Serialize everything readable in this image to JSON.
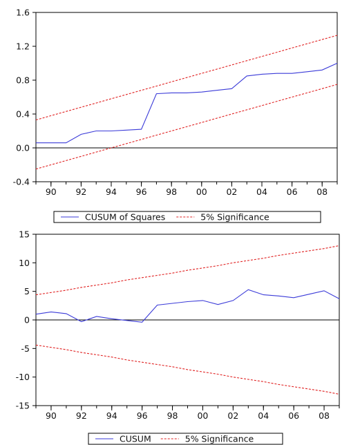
{
  "chart_data": [
    {
      "type": "line",
      "x": [
        1989,
        1990,
        1991,
        1992,
        1993,
        1994,
        1995,
        1996,
        1997,
        1998,
        1999,
        2000,
        2001,
        2002,
        2003,
        2004,
        2005,
        2006,
        2007,
        2008,
        2009
      ],
      "x_tick_labels": [
        "90",
        "92",
        "94",
        "96",
        "98",
        "00",
        "02",
        "04",
        "06",
        "08"
      ],
      "x_tick_values": [
        1990,
        1992,
        1994,
        1996,
        1998,
        2000,
        2002,
        2004,
        2006,
        2008
      ],
      "xlim": [
        1989,
        2009
      ],
      "ylim": [
        -0.4,
        1.6
      ],
      "y_tick_labels": [
        "1.6",
        "1.2",
        "0.8",
        "0.4",
        "0.0",
        "-0.4"
      ],
      "y_tick_values": [
        1.6,
        1.2,
        0.8,
        0.4,
        0.0,
        -0.4
      ],
      "series": [
        {
          "name": "CUSUM of Squares",
          "color": "#3a3ad8",
          "style": "solid",
          "values": [
            0.06,
            0.06,
            0.06,
            0.16,
            0.2,
            0.2,
            0.21,
            0.22,
            0.64,
            0.65,
            0.65,
            0.66,
            0.68,
            0.7,
            0.85,
            0.87,
            0.88,
            0.88,
            0.9,
            0.92,
            1.0
          ]
        },
        {
          "name": "5% Significance",
          "color": "#e02020",
          "style": "dashed",
          "values": [
            0.33,
            0.38,
            0.43,
            0.48,
            0.53,
            0.58,
            0.63,
            0.68,
            0.73,
            0.78,
            0.83,
            0.88,
            0.93,
            0.98,
            1.03,
            1.08,
            1.13,
            1.18,
            1.23,
            1.28,
            1.33
          ]
        },
        {
          "name": "5% Significance lower",
          "color": "#e02020",
          "style": "dashed",
          "values": [
            -0.25,
            -0.2,
            -0.15,
            -0.1,
            -0.05,
            0.0,
            0.05,
            0.1,
            0.15,
            0.2,
            0.25,
            0.3,
            0.35,
            0.4,
            0.45,
            0.5,
            0.55,
            0.6,
            0.65,
            0.7,
            0.75
          ]
        }
      ],
      "zero_line": 0.0,
      "legend": [
        {
          "label": "CUSUM of Squares",
          "color": "#3a3ad8",
          "style": "solid"
        },
        {
          "label": "5% Significance",
          "color": "#e02020",
          "style": "dashed"
        }
      ],
      "legend_position": "bottom-center",
      "grid": false
    },
    {
      "type": "line",
      "x": [
        1989,
        1990,
        1991,
        1992,
        1993,
        1994,
        1995,
        1996,
        1997,
        1998,
        1999,
        2000,
        2001,
        2002,
        2003,
        2004,
        2005,
        2006,
        2007,
        2008,
        2009
      ],
      "x_tick_labels": [
        "90",
        "92",
        "94",
        "96",
        "98",
        "00",
        "02",
        "04",
        "06",
        "08"
      ],
      "x_tick_values": [
        1990,
        1992,
        1994,
        1996,
        1998,
        2000,
        2002,
        2004,
        2006,
        2008
      ],
      "xlim": [
        1989,
        2009
      ],
      "ylim": [
        -15,
        15
      ],
      "y_tick_labels": [
        "15",
        "10",
        "5",
        "0",
        "-5",
        "-10",
        "-15"
      ],
      "y_tick_values": [
        15,
        10,
        5,
        0,
        -5,
        -10,
        -15
      ],
      "series": [
        {
          "name": "CUSUM",
          "color": "#3a3ad8",
          "style": "solid",
          "values": [
            1.0,
            1.4,
            1.1,
            -0.3,
            0.6,
            0.2,
            -0.1,
            -0.4,
            2.6,
            2.9,
            3.2,
            3.4,
            2.7,
            3.4,
            5.3,
            4.4,
            4.2,
            3.9,
            4.5,
            5.1,
            3.7
          ]
        },
        {
          "name": "5% Significance",
          "color": "#e02020",
          "style": "dashed",
          "values": [
            4.4,
            4.8,
            5.2,
            5.7,
            6.1,
            6.5,
            7.0,
            7.4,
            7.8,
            8.2,
            8.7,
            9.1,
            9.5,
            10.0,
            10.4,
            10.8,
            11.3,
            11.7,
            12.1,
            12.5,
            13.0
          ]
        },
        {
          "name": "5% Significance lower",
          "color": "#e02020",
          "style": "dashed",
          "values": [
            -4.4,
            -4.8,
            -5.2,
            -5.7,
            -6.1,
            -6.5,
            -7.0,
            -7.4,
            -7.8,
            -8.2,
            -8.7,
            -9.1,
            -9.5,
            -10.0,
            -10.4,
            -10.8,
            -11.3,
            -11.7,
            -12.1,
            -12.5,
            -13.0
          ]
        }
      ],
      "zero_line": 0,
      "legend": [
        {
          "label": "CUSUM",
          "color": "#3a3ad8",
          "style": "solid"
        },
        {
          "label": "5% Significance",
          "color": "#e02020",
          "style": "dashed"
        }
      ],
      "legend_position": "bottom-center",
      "grid": false
    }
  ]
}
